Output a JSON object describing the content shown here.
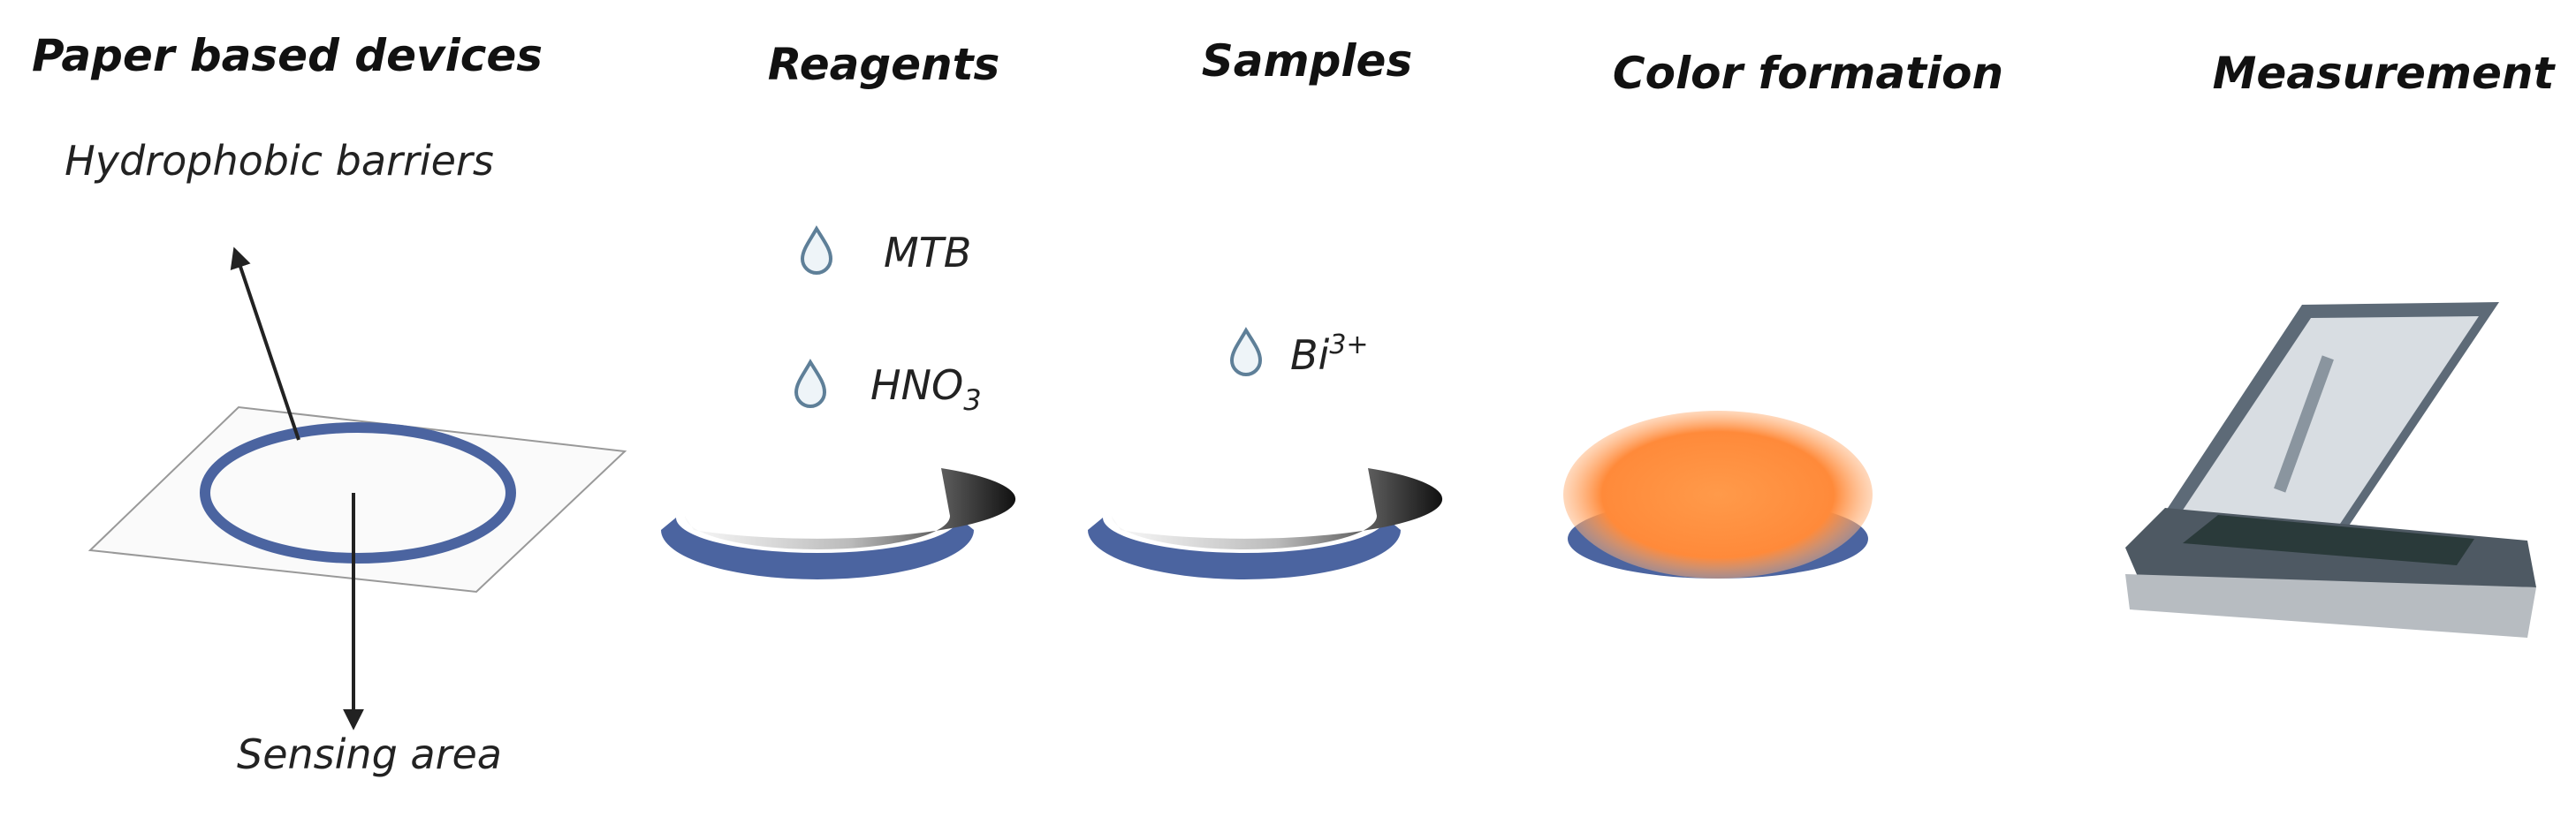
{
  "steps": [
    {
      "title": "Paper based devices",
      "labels": [
        "Hydrophobic barriers",
        "Sensing area"
      ]
    },
    {
      "title": "Reagents",
      "drops": [
        {
          "base": "MTB"
        },
        {
          "base": "HNO",
          "sub": "3"
        }
      ]
    },
    {
      "title": "Samples",
      "drops": [
        {
          "base": "Bi",
          "sup": "3+"
        }
      ]
    },
    {
      "title": "Color formation"
    },
    {
      "title": "Measurement"
    }
  ]
}
